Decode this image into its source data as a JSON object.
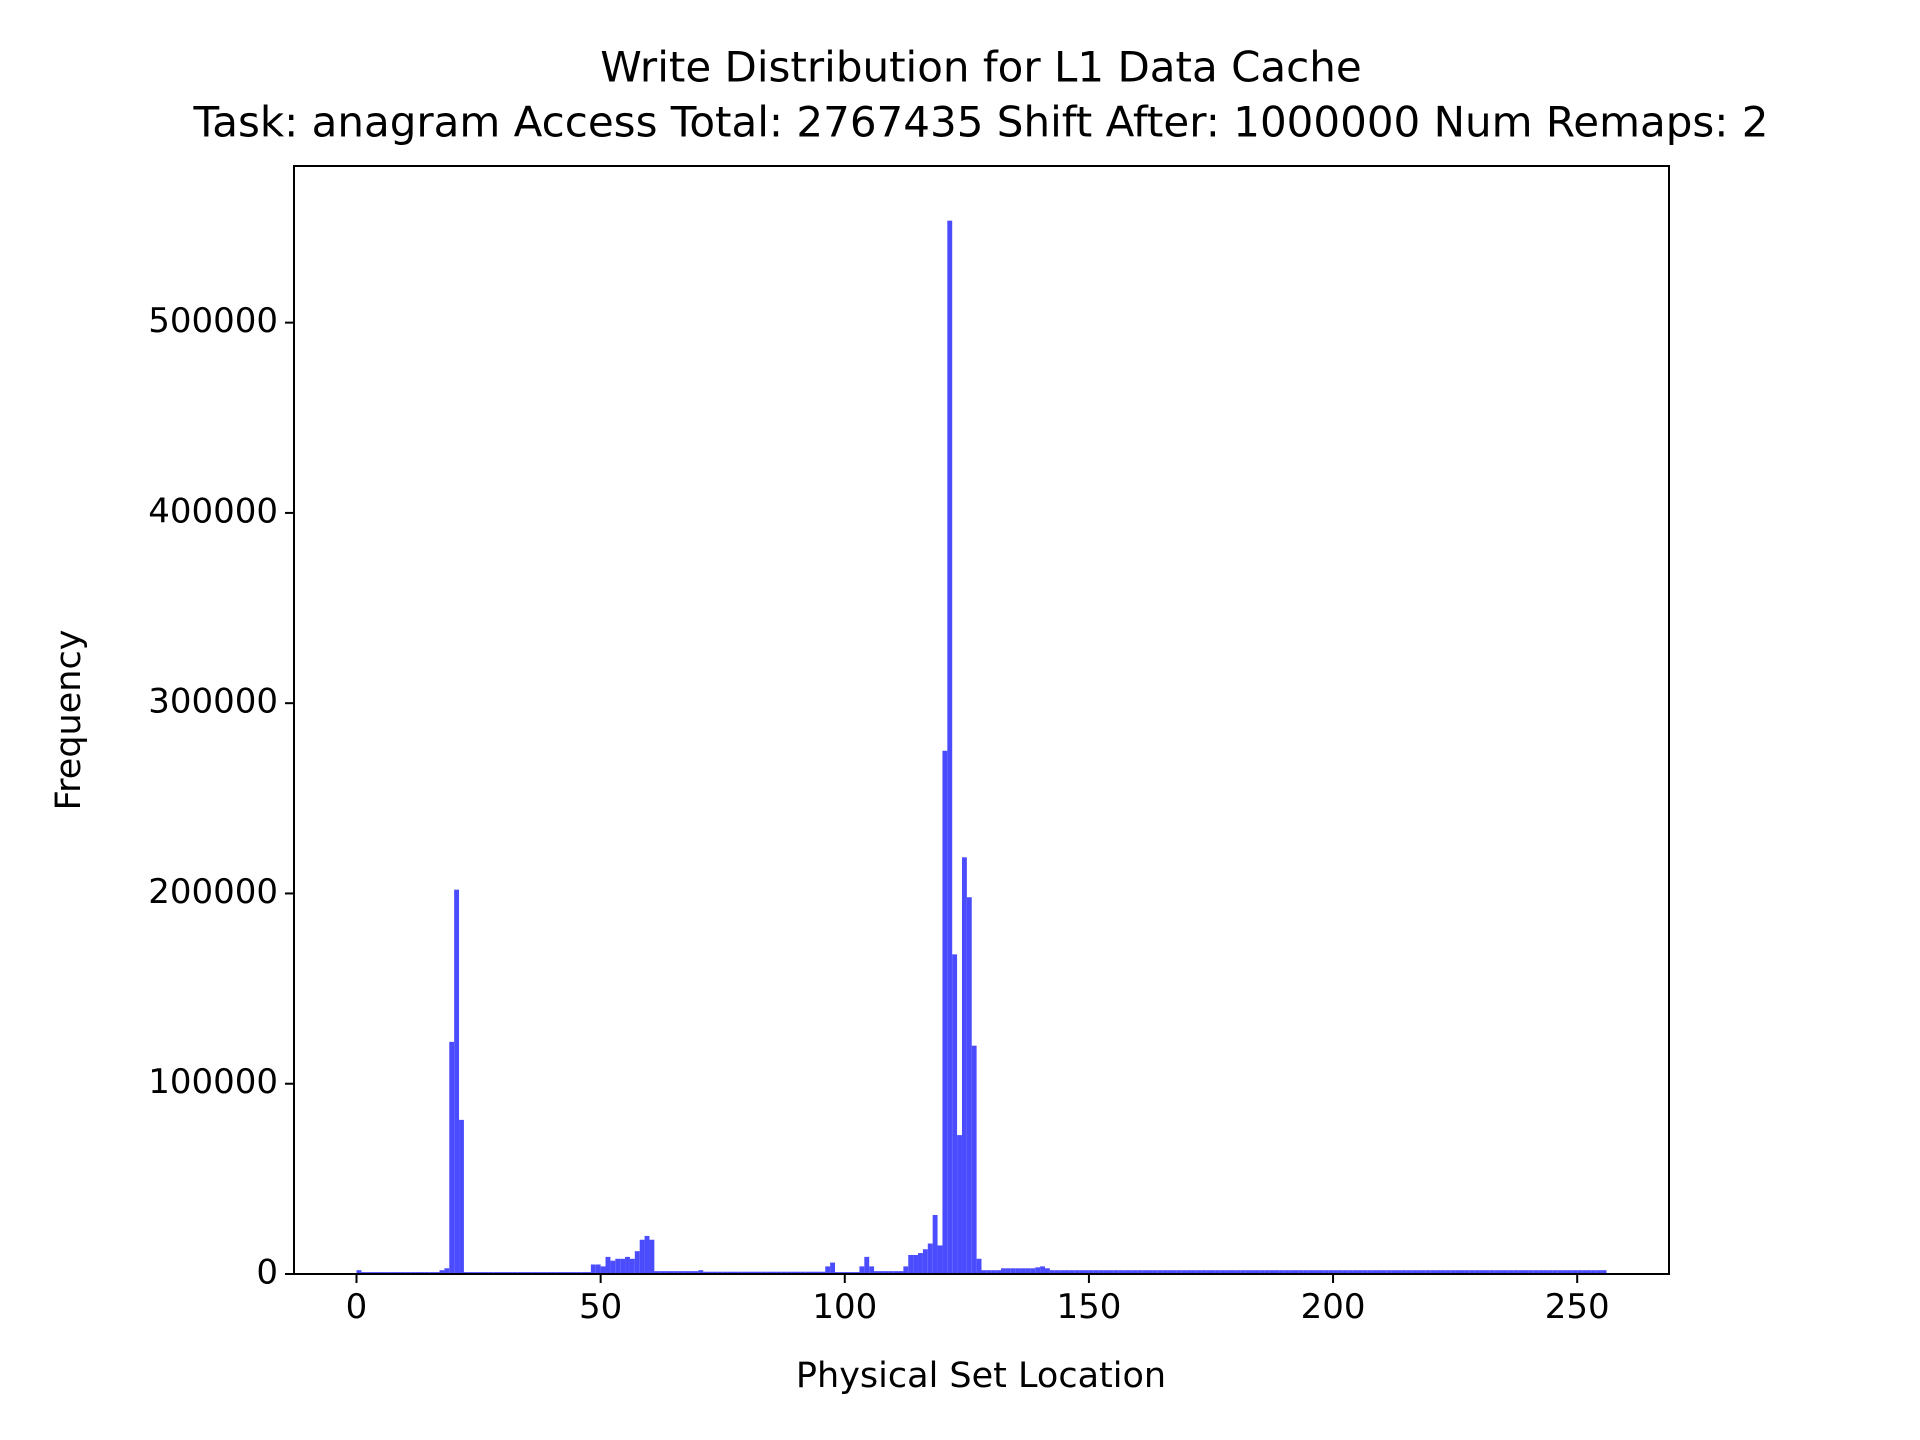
{
  "chart_data": {
    "type": "histogram",
    "title": "Write Distribution for L1 Data Cache",
    "subtitle": "Task: anagram Access Total: 2767435 Shift After: 1000000 Num Remaps: 2",
    "x_label": "Physical Set Location",
    "y_label": "Frequency",
    "color": "#4c4cff",
    "xlim": [
      -12.8,
      268.8
    ],
    "ylim": [
      0,
      582330
    ],
    "xticks": [
      0,
      50,
      100,
      150,
      200,
      250
    ],
    "yticks": [
      0,
      100000,
      200000,
      300000,
      400000,
      500000
    ],
    "bins": [
      0,
      1,
      2,
      3,
      4,
      5,
      6,
      7,
      8,
      9,
      10,
      11,
      12,
      13,
      14,
      15,
      16,
      17,
      18,
      19,
      20,
      21,
      22,
      23,
      24,
      25,
      26,
      27,
      28,
      29,
      30,
      31,
      32,
      33,
      34,
      35,
      36,
      37,
      38,
      39,
      40,
      41,
      42,
      43,
      44,
      45,
      46,
      47,
      48,
      49,
      50,
      51,
      52,
      53,
      54,
      55,
      56,
      57,
      58,
      59,
      60,
      61,
      62,
      63,
      64,
      65,
      66,
      67,
      68,
      69,
      70,
      71,
      72,
      73,
      74,
      75,
      76,
      77,
      78,
      79,
      80,
      81,
      82,
      83,
      84,
      85,
      86,
      87,
      88,
      89,
      90,
      91,
      92,
      93,
      94,
      95,
      96,
      97,
      98,
      99,
      100,
      101,
      102,
      103,
      104,
      105,
      106,
      107,
      108,
      109,
      110,
      111,
      112,
      113,
      114,
      115,
      116,
      117,
      118,
      119,
      120,
      121,
      122,
      123,
      124,
      125,
      126,
      127,
      128,
      129,
      130,
      131,
      132,
      133,
      134,
      135,
      136,
      137,
      138,
      139,
      140,
      141,
      142,
      143,
      144,
      145,
      146,
      147,
      148,
      149,
      150,
      151,
      152,
      153,
      154,
      155,
      156,
      157,
      158,
      159,
      160,
      161,
      162,
      163,
      164,
      165,
      166,
      167,
      168,
      169,
      170,
      171,
      172,
      173,
      174,
      175,
      176,
      177,
      178,
      179,
      180,
      181,
      182,
      183,
      184,
      185,
      186,
      187,
      188,
      189,
      190,
      191,
      192,
      193,
      194,
      195,
      196,
      197,
      198,
      199,
      200,
      201,
      202,
      203,
      204,
      205,
      206,
      207,
      208,
      209,
      210,
      211,
      212,
      213,
      214,
      215,
      216,
      217,
      218,
      219,
      220,
      221,
      222,
      223,
      224,
      225,
      226,
      227,
      228,
      229,
      230,
      231,
      232,
      233,
      234,
      235,
      236,
      237,
      238,
      239,
      240,
      241,
      242,
      243,
      244,
      245,
      246,
      247,
      248,
      249,
      250,
      251,
      252,
      253,
      254,
      255,
      256
    ],
    "counts": [
      2000,
      1000,
      1000,
      1000,
      1000,
      1000,
      1000,
      1000,
      1000,
      1000,
      1000,
      1000,
      1000,
      1000,
      1000,
      1000,
      1000,
      2000,
      3000,
      122000,
      202000,
      81000,
      1000,
      1000,
      1000,
      1000,
      1000,
      1000,
      1000,
      1000,
      1000,
      1000,
      1000,
      1000,
      1000,
      1000,
      1000,
      1000,
      1000,
      1000,
      1000,
      1000,
      1000,
      1000,
      1000,
      1000,
      1000,
      1000,
      5000,
      5000,
      4000,
      9000,
      7000,
      8000,
      8000,
      9000,
      8000,
      12000,
      18000,
      20000,
      18000,
      1500,
      1500,
      1500,
      1500,
      1500,
      1500,
      1500,
      1500,
      1500,
      2000,
      1200,
      1200,
      1200,
      1200,
      1200,
      1200,
      1200,
      1200,
      1200,
      1200,
      1200,
      1200,
      1200,
      1200,
      1200,
      1200,
      1200,
      1200,
      1200,
      1200,
      1200,
      1200,
      1200,
      1200,
      1200,
      4000,
      6000,
      1000,
      1000,
      1000,
      1000,
      1000,
      4000,
      9000,
      4000,
      1500,
      1500,
      1500,
      1500,
      1500,
      1500,
      4000,
      10000,
      10000,
      11000,
      13000,
      16000,
      31000,
      15000,
      275000,
      553600,
      168000,
      73000,
      219000,
      198000,
      120000,
      8000,
      2000,
      2000,
      2000,
      2000,
      3000,
      3000,
      3000,
      3000,
      3000,
      3000,
      3000,
      3500,
      4000,
      3000,
      2000,
      2000,
      2000,
      2000,
      2000,
      2000,
      2000,
      2000,
      2000,
      2000,
      2000,
      2000,
      2000,
      2000,
      2000,
      2000,
      2000,
      2000,
      2000,
      2000,
      2000,
      2000,
      2000,
      2000,
      2000,
      2000,
      2000,
      2000,
      2000,
      2000,
      2000,
      2000,
      2000,
      2000,
      2000,
      2000,
      2000,
      2000,
      2000,
      2000,
      2000,
      2000,
      2000,
      2000,
      2000,
      2000,
      2000,
      2000,
      2000,
      2000,
      2000,
      2000,
      2000,
      2000,
      2000,
      2000,
      2000,
      2000,
      2000,
      2000,
      2000,
      2000,
      2000,
      2000,
      2000,
      2000,
      2000,
      2000,
      2000,
      2000,
      2000,
      2000,
      2000,
      2000,
      2000,
      2000,
      2000,
      2000,
      2000,
      2000,
      2000,
      2000,
      2000,
      2000,
      2000,
      2000,
      2000,
      2000,
      2000,
      2000,
      2000,
      2000,
      2000,
      2000,
      2000,
      2000,
      2000,
      2000,
      2000,
      2000,
      2000,
      2000,
      2000,
      2000,
      2000,
      2000,
      2000,
      2000,
      2000,
      2000,
      2000,
      2000,
      2000,
      2000
    ]
  }
}
